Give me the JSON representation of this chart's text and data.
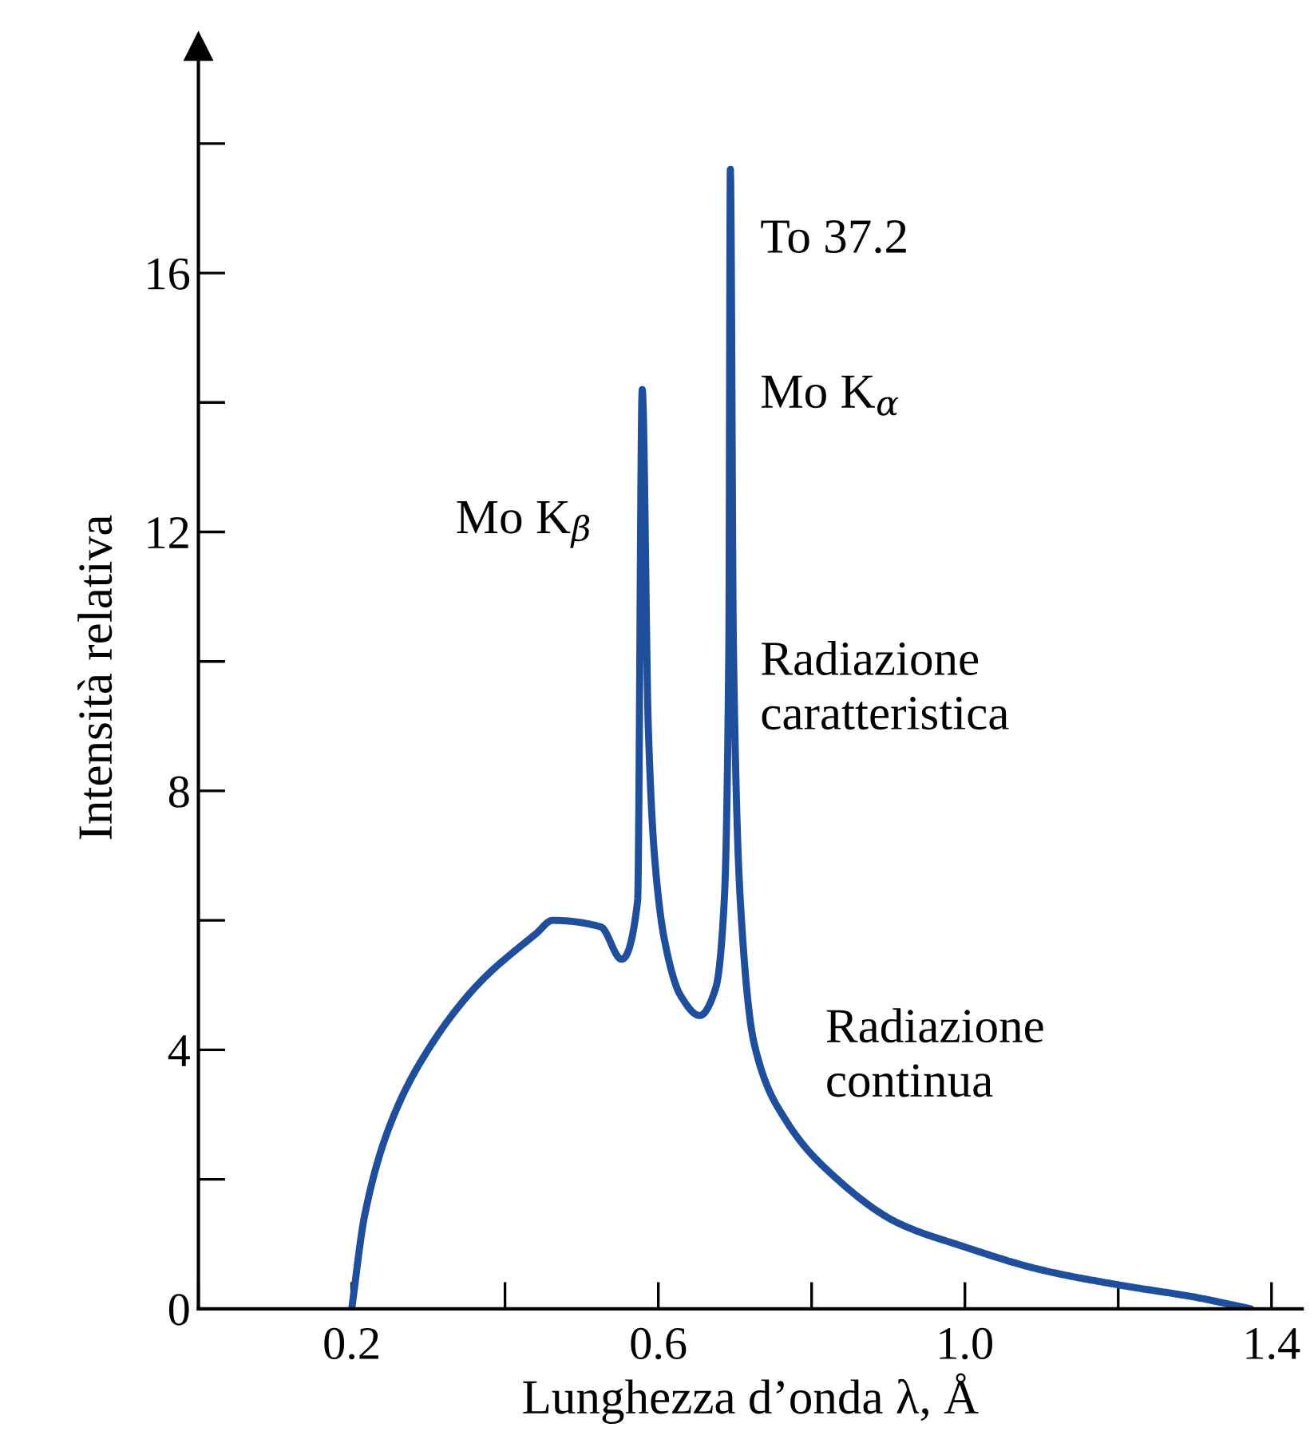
{
  "chart_data": {
    "type": "line",
    "xlabel": "Lunghezza d’onda λ, Å",
    "ylabel": "Intensità relativa",
    "series": [
      {
        "color": "#1f4e9c",
        "x": [
          0.2,
          0.217,
          0.252,
          0.305,
          0.367,
          0.441,
          0.462,
          0.525,
          0.552,
          0.573,
          0.579,
          0.587,
          0.595,
          0.608,
          0.629,
          0.654,
          0.675,
          0.686,
          0.692,
          0.694,
          0.698,
          0.707,
          0.725,
          0.767,
          0.828,
          0.912,
          0.996,
          1.1,
          1.205,
          1.3,
          1.373
        ],
        "values": [
          0,
          1.45,
          2.9,
          4.1,
          5.04,
          5.8,
          6.0,
          5.9,
          5.4,
          6.3,
          14.2,
          8.96,
          7.0,
          5.7,
          4.84,
          4.53,
          4.96,
          6.3,
          10.2,
          17.6,
          10.2,
          6.3,
          4.1,
          2.9,
          2.06,
          1.33,
          0.97,
          0.6,
          0.36,
          0.18,
          0
        ]
      }
    ],
    "xlim": [
      0,
      1.44
    ],
    "ylim": [
      0,
      19.5
    ],
    "xticks": [
      {
        "value": 0.2,
        "label": "0.2"
      },
      {
        "value": 0.6,
        "label": "0.6"
      },
      {
        "value": 1.0,
        "label": "1.0"
      },
      {
        "value": 1.4,
        "label": "1.4"
      }
    ],
    "yticks": [
      0,
      4,
      8,
      12,
      16
    ],
    "annotations": [
      "To 37.2",
      "Mo K$_{α}$",
      "Mo K$_{β}$",
      "Radiazione\ncaratteristica",
      "Radiazione\ncontinua"
    ],
    "grid": false,
    "legend": false,
    "marker": "none",
    "line_style": "solid"
  }
}
